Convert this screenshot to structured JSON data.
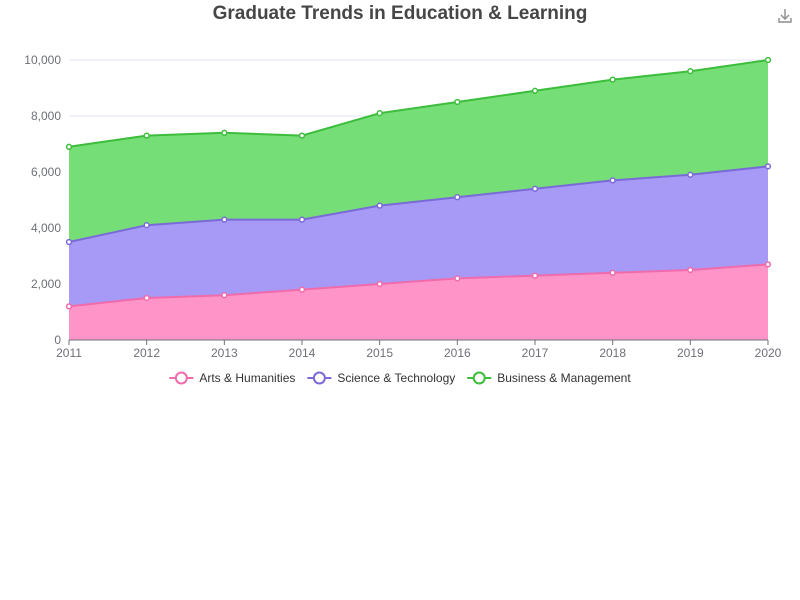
{
  "toolbar": {
    "download_icon": "download-icon"
  },
  "chart_data": {
    "type": "area",
    "stacked": true,
    "title": "Graduate Trends in Education & Learning",
    "x": [
      "2011",
      "2012",
      "2013",
      "2014",
      "2015",
      "2016",
      "2017",
      "2018",
      "2019",
      "2020"
    ],
    "ylim": [
      0,
      10000
    ],
    "yticks": [
      "0",
      "2,000",
      "4,000",
      "6,000",
      "8,000",
      "10,000"
    ],
    "grid": true,
    "legend_position": "bottom-center",
    "series": [
      {
        "name": "Arts & Humanities",
        "color": "#ff8ec6",
        "line_color": "#f06bab",
        "values": [
          1200,
          1500,
          1600,
          1800,
          2000,
          2200,
          2300,
          2400,
          2500,
          2700
        ]
      },
      {
        "name": "Science & Technology",
        "color": "#a295f5",
        "line_color": "#7a6ad8",
        "values": [
          2300,
          2600,
          2700,
          2500,
          2800,
          2900,
          3100,
          3300,
          3400,
          3500
        ]
      },
      {
        "name": "Business & Management",
        "color": "#6fdc6f",
        "line_color": "#3cbd3c",
        "values": [
          3400,
          3200,
          3100,
          3000,
          3300,
          3400,
          3500,
          3600,
          3700,
          3800
        ]
      }
    ]
  }
}
